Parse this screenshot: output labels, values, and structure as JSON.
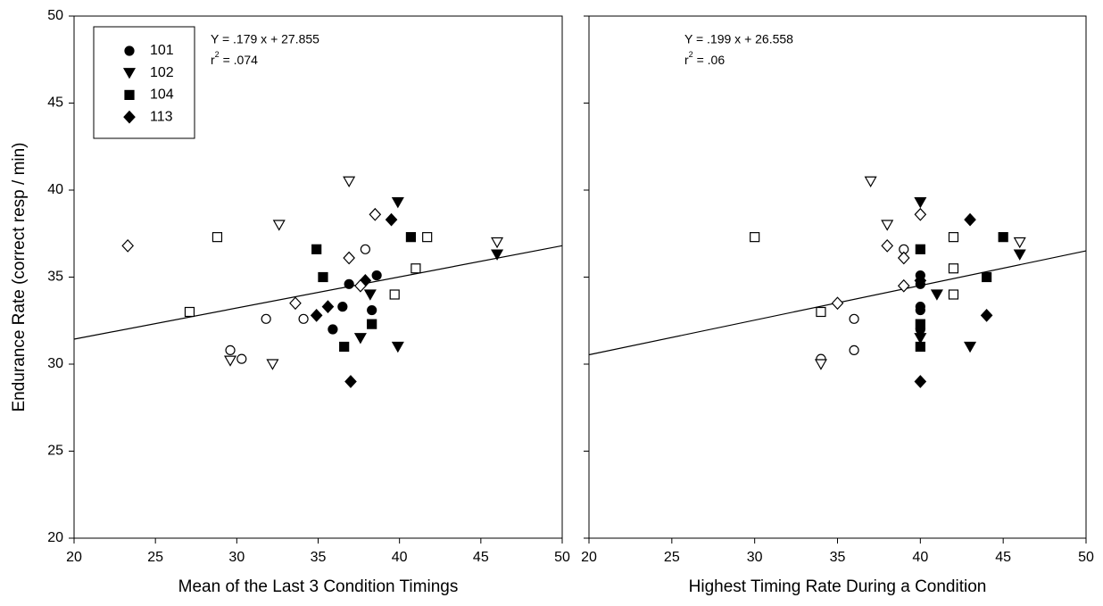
{
  "chart_data": [
    {
      "type": "scatter",
      "x_label": "Mean of the Last 3 Condition Timings",
      "y_label": "Endurance Rate (correct resp / min)",
      "xlim": [
        20,
        50
      ],
      "ylim": [
        20,
        50
      ],
      "xticks": [
        20,
        25,
        30,
        35,
        40,
        45,
        50
      ],
      "yticks": [
        20,
        25,
        30,
        35,
        40,
        45,
        50
      ],
      "show_ytick_labels": true,
      "legend": "upper left",
      "fit": {
        "slope": 0.179,
        "intercept": 27.855,
        "equation": "Y = .179 x + 27.855",
        "r2_symbol": "r",
        "r2_power": "2",
        "r2_text": " = .074"
      },
      "series": [
        {
          "name": "101",
          "marker": "circle",
          "filled": true,
          "color": "#000000",
          "x": [
            35.9,
            36.9,
            36.5,
            38.6,
            38.3
          ],
          "values": [
            32.0,
            34.6,
            33.3,
            35.1,
            33.1
          ]
        },
        {
          "name": "102",
          "marker": "triangle-down",
          "filled": true,
          "color": "#000000",
          "x": [
            39.9,
            38.2,
            37.6,
            39.9,
            46.0
          ],
          "values": [
            39.3,
            34.0,
            31.5,
            31.0,
            36.3
          ]
        },
        {
          "name": "104",
          "marker": "square",
          "filled": true,
          "color": "#000000",
          "x": [
            34.9,
            35.3,
            36.6,
            38.3,
            40.7
          ],
          "values": [
            36.6,
            35.0,
            31.0,
            32.3,
            37.3
          ]
        },
        {
          "name": "113",
          "marker": "diamond",
          "filled": true,
          "color": "#000000",
          "x": [
            34.9,
            35.6,
            37.9,
            39.5,
            37.0
          ],
          "values": [
            32.8,
            33.3,
            34.8,
            38.3,
            29.0
          ]
        },
        {
          "marker": "circle",
          "filled": false,
          "color": "#000000",
          "x": [
            29.6,
            30.3,
            31.8,
            34.1,
            37.9
          ],
          "values": [
            30.8,
            30.3,
            32.6,
            32.6,
            36.6
          ]
        },
        {
          "marker": "triangle-down",
          "filled": false,
          "color": "#000000",
          "x": [
            36.9,
            32.6,
            29.6,
            32.2,
            46.0
          ],
          "values": [
            40.5,
            38.0,
            30.2,
            30.0,
            37.0
          ]
        },
        {
          "marker": "square",
          "filled": false,
          "color": "#000000",
          "x": [
            27.1,
            28.8,
            39.7,
            41.0,
            41.7
          ],
          "values": [
            33.0,
            37.3,
            34.0,
            35.5,
            37.3
          ]
        },
        {
          "marker": "diamond",
          "filled": false,
          "color": "#000000",
          "x": [
            23.3,
            33.6,
            36.9,
            37.6,
            38.5
          ],
          "values": [
            36.8,
            33.5,
            36.1,
            34.5,
            38.6
          ]
        }
      ]
    },
    {
      "type": "scatter",
      "x_label": "Highest Timing Rate During a Condition",
      "xlim": [
        20,
        50
      ],
      "ylim": [
        20,
        50
      ],
      "xticks": [
        20,
        25,
        30,
        35,
        40,
        45,
        50
      ],
      "yticks": [
        20,
        25,
        30,
        35,
        40,
        45,
        50
      ],
      "show_ytick_labels": false,
      "fit": {
        "slope": 0.199,
        "intercept": 26.558,
        "equation": "Y = .199 x + 26.558",
        "r2_symbol": "r",
        "r2_power": "2",
        "r2_text": " = .06"
      },
      "series": [
        {
          "marker": "circle",
          "filled": true,
          "color": "#000000",
          "x": [
            40,
            40,
            40,
            40,
            40
          ],
          "values": [
            32.0,
            34.6,
            33.3,
            35.1,
            33.1
          ]
        },
        {
          "marker": "triangle-down",
          "filled": true,
          "color": "#000000",
          "x": [
            40,
            40,
            41,
            43,
            46
          ],
          "values": [
            39.3,
            31.5,
            34.0,
            31.0,
            36.3
          ]
        },
        {
          "marker": "square",
          "filled": true,
          "color": "#000000",
          "x": [
            40,
            40,
            40,
            44,
            45
          ],
          "values": [
            36.6,
            32.3,
            31.0,
            35.0,
            37.3
          ]
        },
        {
          "marker": "diamond",
          "filled": true,
          "color": "#000000",
          "x": [
            40,
            40,
            43,
            44
          ],
          "values": [
            34.8,
            29.0,
            38.3,
            32.8
          ]
        },
        {
          "marker": "circle",
          "filled": false,
          "color": "#000000",
          "x": [
            36,
            36,
            34,
            39
          ],
          "values": [
            32.6,
            30.8,
            30.3,
            36.6
          ]
        },
        {
          "marker": "triangle-down",
          "filled": false,
          "color": "#000000",
          "x": [
            37,
            38,
            34,
            46
          ],
          "values": [
            40.5,
            38.0,
            30.0,
            37.0
          ]
        },
        {
          "marker": "square",
          "filled": false,
          "color": "#000000",
          "x": [
            30,
            34,
            42,
            42,
            42
          ],
          "values": [
            37.3,
            33.0,
            37.3,
            35.5,
            34.0
          ]
        },
        {
          "marker": "diamond",
          "filled": false,
          "color": "#000000",
          "x": [
            35,
            38,
            39,
            39,
            40
          ],
          "values": [
            33.5,
            36.8,
            36.1,
            34.5,
            38.6
          ]
        }
      ]
    }
  ]
}
